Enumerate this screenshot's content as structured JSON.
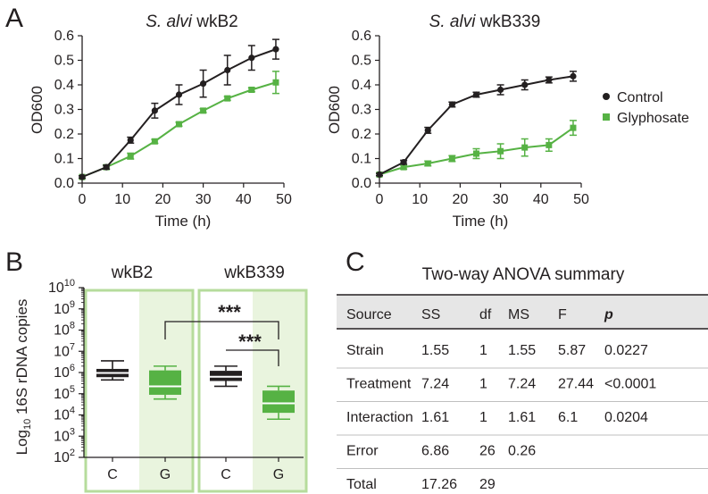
{
  "panels": {
    "a": "A",
    "b": "B",
    "c": "C"
  },
  "legend": {
    "control": "Control",
    "glyphosate": "Glyphosate"
  },
  "colors": {
    "control": "#231f20",
    "glyphosate": "#56b244",
    "box_light": "#e9f4de",
    "box_border": "#b6dc9c"
  },
  "chart_data": [
    {
      "type": "line",
      "title_italic": "S. alvi",
      "title_strain": "wkB2",
      "xlabel": "Time (h)",
      "ylabel": "OD600",
      "xlim": [
        0,
        50
      ],
      "ylim": [
        0,
        0.6
      ],
      "xticks": [
        "0",
        "10",
        "20",
        "30",
        "40",
        "50"
      ],
      "yticks": [
        "0.0",
        "0.1",
        "0.2",
        "0.3",
        "0.4",
        "0.5",
        "0.6"
      ],
      "x": [
        0,
        6,
        12,
        18,
        24,
        30,
        36,
        42,
        48
      ],
      "series": [
        {
          "name": "Control",
          "values": [
            0.025,
            0.065,
            0.175,
            0.295,
            0.36,
            0.405,
            0.46,
            0.51,
            0.545
          ],
          "errors": [
            0.005,
            0.008,
            0.012,
            0.03,
            0.04,
            0.055,
            0.06,
            0.05,
            0.04
          ]
        },
        {
          "name": "Glyphosate",
          "values": [
            0.025,
            0.065,
            0.11,
            0.17,
            0.24,
            0.295,
            0.345,
            0.38,
            0.41
          ],
          "errors": [
            0.005,
            0.008,
            0.012,
            0.008,
            0.008,
            0.008,
            0.008,
            0.008,
            0.045
          ]
        }
      ]
    },
    {
      "type": "line",
      "title_italic": "S. alvi",
      "title_strain": "wkB339",
      "xlabel": "Time (h)",
      "ylabel": "OD600",
      "xlim": [
        0,
        50
      ],
      "ylim": [
        0,
        0.6
      ],
      "xticks": [
        "0",
        "10",
        "20",
        "30",
        "40",
        "50"
      ],
      "yticks": [
        "0.0",
        "0.1",
        "0.2",
        "0.3",
        "0.4",
        "0.5",
        "0.6"
      ],
      "x": [
        0,
        6,
        12,
        18,
        24,
        30,
        36,
        42,
        48
      ],
      "series": [
        {
          "name": "Control",
          "values": [
            0.035,
            0.085,
            0.215,
            0.32,
            0.36,
            0.38,
            0.4,
            0.42,
            0.435
          ],
          "errors": [
            0.005,
            0.008,
            0.012,
            0.01,
            0.01,
            0.02,
            0.02,
            0.012,
            0.02
          ]
        },
        {
          "name": "Glyphosate",
          "values": [
            0.035,
            0.065,
            0.08,
            0.1,
            0.12,
            0.13,
            0.145,
            0.155,
            0.225
          ],
          "errors": [
            0.005,
            0.008,
            0.01,
            0.012,
            0.02,
            0.03,
            0.035,
            0.025,
            0.03
          ]
        }
      ]
    },
    {
      "type": "box",
      "ylabel_prefix": "Log",
      "ylabel_sub": "10",
      "ylabel_suffix": " 16S rDNA copies",
      "yscale": "log",
      "ylim_exp": [
        2,
        10
      ],
      "ytick_base": "10",
      "ytick_exps": [
        "2",
        "3",
        "4",
        "5",
        "6",
        "7",
        "8",
        "9",
        "10"
      ],
      "groups": [
        {
          "label": "wkB2",
          "boxes": [
            {
              "cat": "C",
              "color": "control",
              "whisker_low": 5.65,
              "q1": 5.78,
              "median": 5.98,
              "q3": 6.17,
              "whisker_high": 6.55
            },
            {
              "cat": "G",
              "color": "glyphosate",
              "whisker_low": 4.75,
              "q1": 4.95,
              "median": 5.35,
              "q3": 6.1,
              "whisker_high": 6.3
            }
          ]
        },
        {
          "label": "wkB339",
          "boxes": [
            {
              "cat": "C",
              "color": "control",
              "whisker_low": 5.35,
              "q1": 5.6,
              "median": 5.8,
              "q3": 6.08,
              "whisker_high": 6.3
            },
            {
              "cat": "G",
              "color": "glyphosate",
              "whisker_low": 3.8,
              "q1": 4.1,
              "median": 4.55,
              "q3": 5.15,
              "whisker_high": 5.35
            }
          ]
        }
      ],
      "significance": [
        "***",
        "***"
      ]
    }
  ],
  "anova": {
    "title": "Two-way ANOVA summary",
    "headers": [
      "Source",
      "SS",
      "df",
      "MS",
      "F",
      "p"
    ],
    "rows": [
      [
        "Strain",
        "1.55",
        "1",
        "1.55",
        "5.87",
        "0.0227"
      ],
      [
        "Treatment",
        "7.24",
        "1",
        "7.24",
        "27.44",
        "<0.0001"
      ],
      [
        "Interaction",
        "1.61",
        "1",
        "1.61",
        "6.1",
        "0.0204"
      ],
      [
        "Error",
        "6.86",
        "26",
        "0.26",
        "",
        ""
      ],
      [
        "Total",
        "17.26",
        "29",
        "",
        "",
        ""
      ]
    ]
  }
}
